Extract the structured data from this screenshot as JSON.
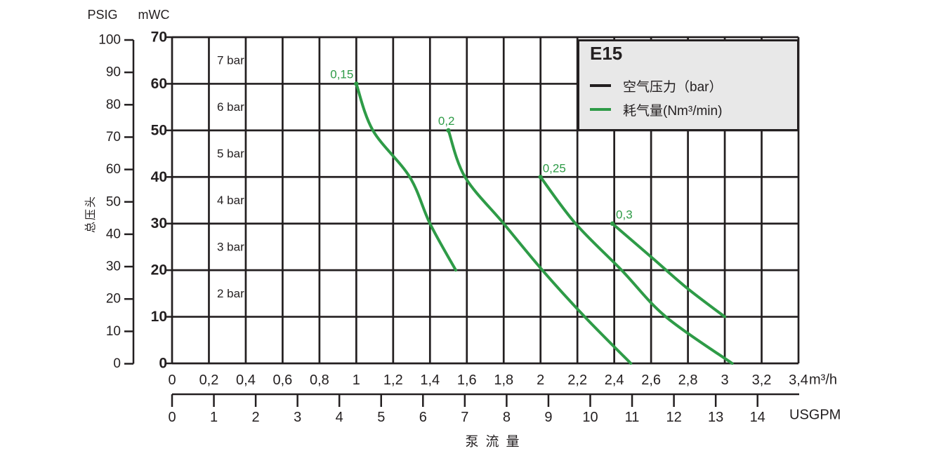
{
  "colors": {
    "green": "#2e9b47",
    "black": "#231f20",
    "legend_bg": "#e8e8e8"
  },
  "axes": {
    "psig_title": "PSIG",
    "mwc_title": "mWC",
    "y_label": "总压头",
    "x_label": "泵流量",
    "m3h_unit": "m³/h",
    "usgpm_unit": "USGPM"
  },
  "legend": {
    "title": "E15",
    "items": [
      {
        "label": "空气压力（bar）",
        "color": "#231f20"
      },
      {
        "label": "耗气量(Nm³/min)",
        "color": "#2e9b47"
      }
    ]
  },
  "chart_data": {
    "type": "line",
    "title": "E15",
    "grid": true,
    "legend_position": "top-right",
    "x_axis": {
      "label": "泵流量",
      "primary_unit": "m³/h",
      "primary_range": [
        0,
        3.4
      ],
      "primary_tick_step": 0.2,
      "tick_labels_m3h": [
        "0",
        "0,2",
        "0,4",
        "0,6",
        "0,8",
        "1",
        "1,2",
        "1,4",
        "1,6",
        "1,8",
        "2",
        "2,2",
        "2,4",
        "2,6",
        "2,8",
        "3",
        "3,2",
        "3,4"
      ],
      "secondary_unit": "USGPM",
      "secondary_range": [
        0,
        14
      ],
      "usgpm_ticks": [
        0,
        1,
        2,
        3,
        4,
        5,
        6,
        7,
        8,
        9,
        10,
        11,
        12,
        13,
        14
      ]
    },
    "y_axis": {
      "label": "总压头",
      "primary_unit": "mWC",
      "primary_range": [
        0,
        70
      ],
      "mwc_ticks": [
        70,
        60,
        50,
        40,
        30,
        20,
        10,
        0
      ],
      "secondary_unit": "PSIG",
      "secondary_range": [
        0,
        100
      ],
      "psig_ticks": [
        100,
        90,
        80,
        70,
        60,
        50,
        40,
        30,
        20,
        10,
        0
      ]
    },
    "air_pressure_row_labels": [
      "7 bar",
      "6 bar",
      "5 bar",
      "4 bar",
      "3 bar",
      "2 bar"
    ],
    "series": [
      {
        "name": "0,15",
        "unit": "Nm³/min",
        "points": [
          [
            1.0,
            60
          ],
          [
            1.09,
            50
          ],
          [
            1.29,
            40
          ],
          [
            1.4,
            30
          ],
          [
            1.54,
            20
          ]
        ],
        "label_anchor": "end",
        "label_dx": -4,
        "label_dy": -8
      },
      {
        "name": "0,2",
        "unit": "Nm³/min",
        "points": [
          [
            1.5,
            50
          ],
          [
            1.59,
            40
          ],
          [
            1.8,
            30
          ],
          [
            2.01,
            20
          ],
          [
            2.24,
            10
          ],
          [
            2.49,
            0
          ]
        ],
        "label_anchor": "end",
        "label_dx": 9,
        "label_dy": -8
      },
      {
        "name": "0,25",
        "unit": "Nm³/min",
        "points": [
          [
            2.0,
            40
          ],
          [
            2.19,
            30
          ],
          [
            2.44,
            20
          ],
          [
            2.68,
            10
          ],
          [
            3.04,
            0
          ]
        ],
        "label_anchor": "start",
        "label_dx": 3,
        "label_dy": -7
      },
      {
        "name": "0,3",
        "unit": "Nm³/min",
        "points": [
          [
            2.39,
            30
          ],
          [
            2.61,
            22.5
          ],
          [
            2.8,
            16
          ],
          [
            3.0,
            10
          ]
        ],
        "label_anchor": "start",
        "label_dx": 5,
        "label_dy": -7
      }
    ]
  }
}
